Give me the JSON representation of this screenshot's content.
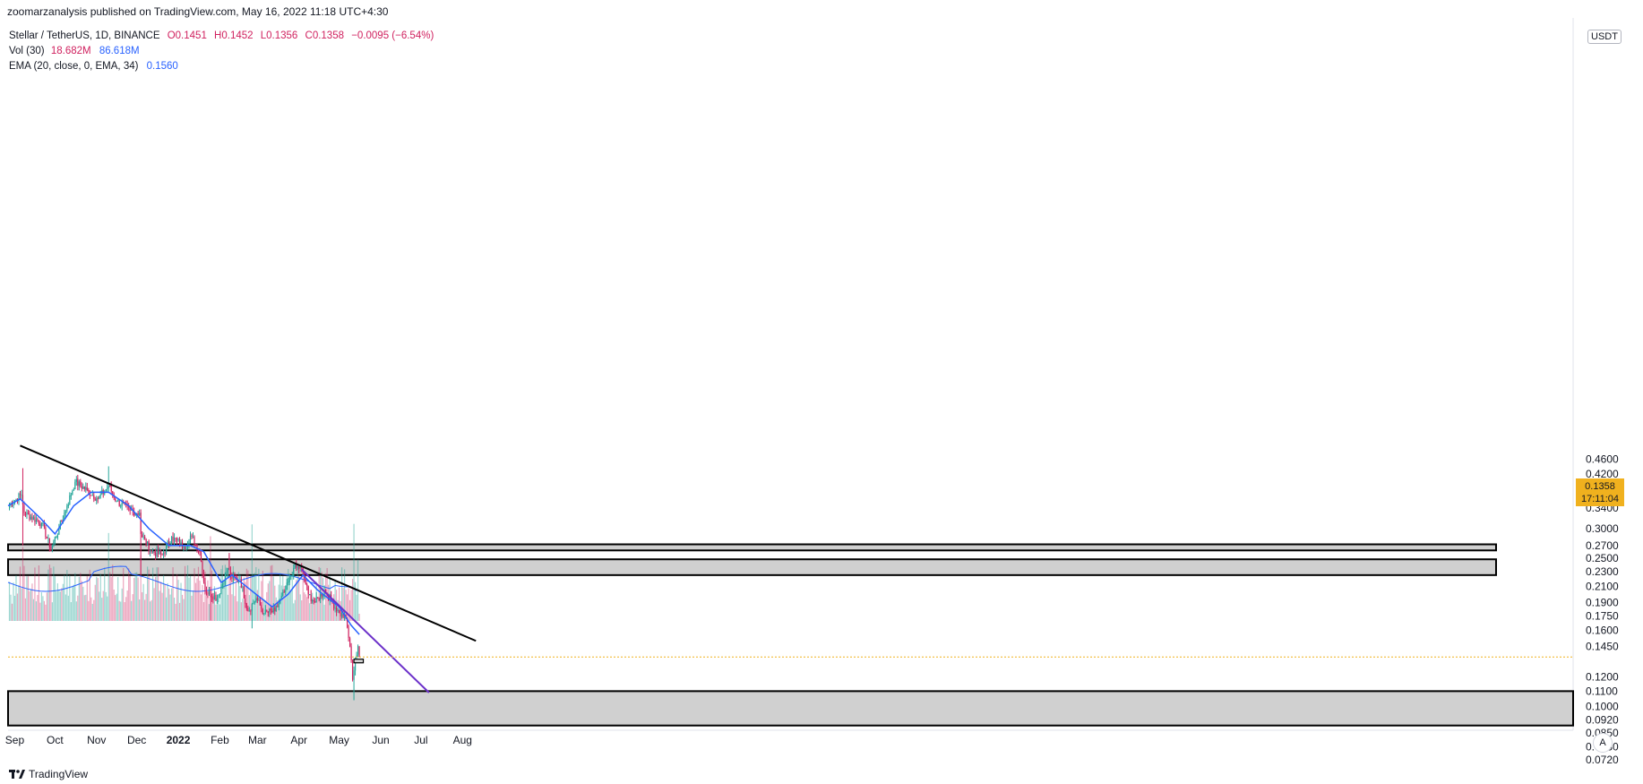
{
  "header": {
    "publish_line": "zoomarzanalysis published on TradingView.com, May 16, 2022 11:18 UTC+4:30"
  },
  "legend": {
    "symbol": "Stellar / TetherUS, 1D, BINANCE",
    "open": "O0.1451",
    "high": "H0.1452",
    "low": "L0.1356",
    "close": "C0.1358",
    "change": "−0.0095 (−6.54%)",
    "vol_label": "Vol (30)",
    "vol_value": "18.682M",
    "vol_ma": "86.618M",
    "ema_label": "EMA (20, close, 0, EMA, 34)",
    "ema_value": "0.1560"
  },
  "price_axis": {
    "currency": "USDT",
    "current_price": "0.1358",
    "countdown": "17:11:04",
    "ticks": [
      "0.4600",
      "0.4200",
      "0.3800",
      "0.3400",
      "0.3000",
      "0.2700",
      "0.2500",
      "0.2300",
      "0.2100",
      "0.1900",
      "0.1750",
      "0.1600",
      "0.1450",
      "0.1200",
      "0.1100",
      "0.1000",
      "0.0920",
      "0.0850",
      "0.0780",
      "0.0720"
    ]
  },
  "time_axis": {
    "ticks": [
      "Sep",
      "Oct",
      "Nov",
      "Dec",
      "2022",
      "Feb",
      "Mar",
      "Apr",
      "May",
      "Jun",
      "Jul",
      "Aug"
    ]
  },
  "footer": {
    "brand": "TradingView"
  },
  "auto_button": "A",
  "colors": {
    "up": "#26a69a",
    "down": "#d0215f",
    "ema": "#2962ff",
    "trendline_black": "#000000",
    "trendline_purple": "#6c31c9",
    "zone_fill": "#d0d0d0",
    "last_price": "#f0b11e"
  },
  "chart_data": {
    "type": "candlestick",
    "scale": "log",
    "symbol": "Stellar / TetherUS",
    "x_range": [
      "2021-08-27",
      "2022-08-11"
    ],
    "y_range": [
      0.069,
      0.5
    ],
    "last_close": 0.1358,
    "anchors": [
      {
        "date": "2021-08-27",
        "close": 0.345
      },
      {
        "date": "2021-09-06",
        "close": 0.37
      },
      {
        "date": "2021-09-08",
        "close": 0.33
      },
      {
        "date": "2021-09-21",
        "close": 0.31
      },
      {
        "date": "2021-09-28",
        "close": 0.265
      },
      {
        "date": "2021-10-04",
        "close": 0.3
      },
      {
        "date": "2021-10-10",
        "close": 0.345
      },
      {
        "date": "2021-10-16",
        "close": 0.4
      },
      {
        "date": "2021-10-25",
        "close": 0.38
      },
      {
        "date": "2021-11-02",
        "close": 0.36
      },
      {
        "date": "2021-11-10",
        "close": 0.39
      },
      {
        "date": "2021-11-16",
        "close": 0.355
      },
      {
        "date": "2021-11-26",
        "close": 0.335
      },
      {
        "date": "2021-12-03",
        "close": 0.33
      },
      {
        "date": "2021-12-04",
        "close": 0.29
      },
      {
        "date": "2021-12-12",
        "close": 0.26
      },
      {
        "date": "2021-12-20",
        "close": 0.255
      },
      {
        "date": "2021-12-27",
        "close": 0.285
      },
      {
        "date": "2022-01-05",
        "close": 0.268
      },
      {
        "date": "2022-01-11",
        "close": 0.285
      },
      {
        "date": "2022-01-17",
        "close": 0.26
      },
      {
        "date": "2022-01-21",
        "close": 0.205
      },
      {
        "date": "2022-01-30",
        "close": 0.195
      },
      {
        "date": "2022-02-07",
        "close": 0.235
      },
      {
        "date": "2022-02-10",
        "close": 0.22
      },
      {
        "date": "2022-02-16",
        "close": 0.22
      },
      {
        "date": "2022-02-22",
        "close": 0.18
      },
      {
        "date": "2022-02-28",
        "close": 0.195
      },
      {
        "date": "2022-03-06",
        "close": 0.178
      },
      {
        "date": "2022-03-14",
        "close": 0.18
      },
      {
        "date": "2022-03-22",
        "close": 0.205
      },
      {
        "date": "2022-03-28",
        "close": 0.235
      },
      {
        "date": "2022-04-03",
        "close": 0.235
      },
      {
        "date": "2022-04-08",
        "close": 0.2
      },
      {
        "date": "2022-04-13",
        "close": 0.19
      },
      {
        "date": "2022-04-20",
        "close": 0.205
      },
      {
        "date": "2022-04-26",
        "close": 0.19
      },
      {
        "date": "2022-05-01",
        "close": 0.178
      },
      {
        "date": "2022-05-06",
        "close": 0.172
      },
      {
        "date": "2022-05-09",
        "close": 0.145
      },
      {
        "date": "2022-05-11",
        "close": 0.118
      },
      {
        "date": "2022-05-12",
        "close": 0.125
      },
      {
        "date": "2022-05-13",
        "close": 0.135
      },
      {
        "date": "2022-05-15",
        "close": 0.1451
      },
      {
        "date": "2022-05-16",
        "close": 0.1358
      }
    ],
    "notable_wicks": [
      {
        "date": "2021-09-07",
        "high": 0.435,
        "low": 0.27
      },
      {
        "date": "2021-11-10",
        "high": 0.44
      },
      {
        "date": "2021-12-04",
        "low": 0.225
      },
      {
        "date": "2022-01-25",
        "low": 0.17
      },
      {
        "date": "2022-02-08",
        "high": 0.258
      },
      {
        "date": "2022-02-25",
        "low": 0.162
      },
      {
        "date": "2022-05-12",
        "low": 0.104
      }
    ],
    "ema20": [
      {
        "date": "2021-08-27",
        "value": 0.345
      },
      {
        "date": "2021-09-05",
        "value": 0.36
      },
      {
        "date": "2021-09-20",
        "value": 0.32
      },
      {
        "date": "2021-10-01",
        "value": 0.29
      },
      {
        "date": "2021-10-15",
        "value": 0.345
      },
      {
        "date": "2021-10-28",
        "value": 0.375
      },
      {
        "date": "2021-11-10",
        "value": 0.375
      },
      {
        "date": "2021-11-25",
        "value": 0.345
      },
      {
        "date": "2021-12-10",
        "value": 0.3
      },
      {
        "date": "2021-12-25",
        "value": 0.27
      },
      {
        "date": "2022-01-10",
        "value": 0.27
      },
      {
        "date": "2022-01-20",
        "value": 0.26
      },
      {
        "date": "2022-02-02",
        "value": 0.215
      },
      {
        "date": "2022-02-10",
        "value": 0.225
      },
      {
        "date": "2022-02-28",
        "value": 0.2
      },
      {
        "date": "2022-03-12",
        "value": 0.185
      },
      {
        "date": "2022-03-24",
        "value": 0.2
      },
      {
        "date": "2022-04-04",
        "value": 0.225
      },
      {
        "date": "2022-04-15",
        "value": 0.205
      },
      {
        "date": "2022-05-01",
        "value": 0.185
      },
      {
        "date": "2022-05-10",
        "value": 0.165
      },
      {
        "date": "2022-05-16",
        "value": 0.156
      }
    ],
    "volume": {
      "last": "18.682M",
      "ma30": "86.618M"
    },
    "zones": [
      {
        "low": 0.262,
        "high": 0.272
      },
      {
        "low": 0.225,
        "high": 0.248
      },
      {
        "low": 0.089,
        "high": 0.11
      }
    ],
    "trendlines": [
      {
        "color": "black",
        "from": {
          "date": "2021-09-05",
          "price": 0.5
        },
        "to": {
          "date": "2022-08-11",
          "price": 0.15
        }
      },
      {
        "color": "purple",
        "from": {
          "date": "2022-04-03",
          "price": 0.233
        },
        "to": {
          "date": "2022-07-07",
          "price": 0.109
        }
      }
    ],
    "current_price_box": {
      "date_from": "2022-05-12",
      "date_to": "2022-05-19",
      "low": 0.131,
      "high": 0.134
    }
  }
}
